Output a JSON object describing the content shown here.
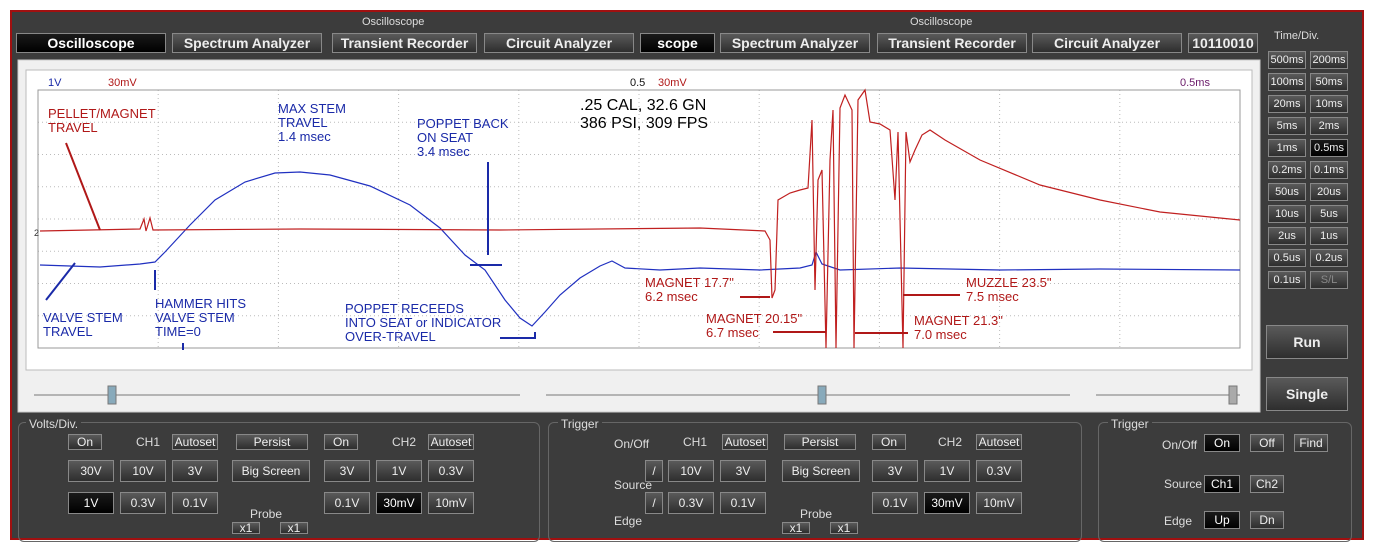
{
  "header": {
    "group_labels": [
      "Oscilloscope",
      "Oscilloscope"
    ],
    "tabs": [
      "Oscilloscope",
      "Spectrum Analyzer",
      "Transient Recorder",
      "Circuit Analyzer",
      "scope",
      "Spectrum Analyzer",
      "Transient Recorder",
      "Circuit Analyzer",
      "10110010"
    ]
  },
  "screen": {
    "top_labels": [
      "1V",
      "30mV",
      "0.5",
      "30mV",
      "0.5ms"
    ],
    "level_marker": "2",
    "title_lines": [
      ".25 CAL, 32.6 GN",
      "386 PSI,  309 FPS"
    ],
    "annotations": [
      {
        "color": "#b01818",
        "lines": [
          "PELLET/MAGNET",
          "TRAVEL"
        ]
      },
      {
        "color": "#1a2aa8",
        "lines": [
          "MAX STEM",
          "TRAVEL",
          "1.4 msec"
        ]
      },
      {
        "color": "#1a2aa8",
        "lines": [
          "POPPET BACK",
          "ON SEAT",
          "3.4 msec"
        ]
      },
      {
        "color": "#1a2aa8",
        "lines": [
          "VALVE STEM",
          "TRAVEL"
        ]
      },
      {
        "color": "#1a2aa8",
        "lines": [
          "HAMMER HITS",
          "VALVE STEM",
          "TIME=0"
        ]
      },
      {
        "color": "#1a2aa8",
        "lines": [
          "POPPET RECEEDS",
          "INTO SEAT or INDICATOR",
          "OVER-TRAVEL"
        ]
      },
      {
        "color": "#b01818",
        "lines": [
          "MAGNET 17.7\"",
          "6.2 msec"
        ]
      },
      {
        "color": "#b01818",
        "lines": [
          "MAGNET 20.15\"",
          "6.7 msec"
        ]
      },
      {
        "color": "#b01818",
        "lines": [
          "MAGNET 21.3\"",
          "7.0 msec"
        ]
      },
      {
        "color": "#b01818",
        "lines": [
          "MUZZLE 23.5\"",
          "7.5 msec"
        ]
      }
    ]
  },
  "time_div": {
    "title": "Time/Div.",
    "buttons": [
      "500ms",
      "200ms",
      "100ms",
      "50ms",
      "20ms",
      "10ms",
      "5ms",
      "2ms",
      "1ms",
      "0.5ms",
      "0.2ms",
      "0.1ms",
      "50us",
      "20us",
      "10us",
      "5us",
      "2us",
      "1us",
      "0.5us",
      "0.2us",
      "0.1us",
      "S/L"
    ]
  },
  "run": "Run",
  "single": "Single",
  "volts_panel": {
    "title": "Volts/Div.",
    "items": [
      "On",
      "CH1",
      "Autoset",
      "Persist",
      "On",
      "CH2",
      "Autoset",
      "30V",
      "10V",
      "3V",
      "Big Screen",
      "3V",
      "1V",
      "0.3V",
      "1V",
      "0.3V",
      "0.1V",
      "0.1V",
      "30mV",
      "10mV",
      "Probe",
      "x1",
      "x1"
    ]
  },
  "trigger_panel": {
    "title": "Trigger",
    "items": [
      "On/Off",
      "CH1",
      "Autoset",
      "Persist",
      "On",
      "CH2",
      "Autoset",
      "/",
      "10V",
      "3V",
      "Big Screen",
      "3V",
      "1V",
      "0.3V",
      "Source",
      "/",
      "0.3V",
      "0.1V",
      "0.1V",
      "30mV",
      "10mV",
      "Edge",
      "Probe",
      "x1",
      "x1"
    ]
  },
  "trigger_panel_2": {
    "title": "Trigger",
    "items": [
      "On/Off",
      "On",
      "Off",
      "Find",
      "Source",
      "Ch1",
      "Ch2",
      "Edge",
      "Up",
      "Dn"
    ]
  }
}
